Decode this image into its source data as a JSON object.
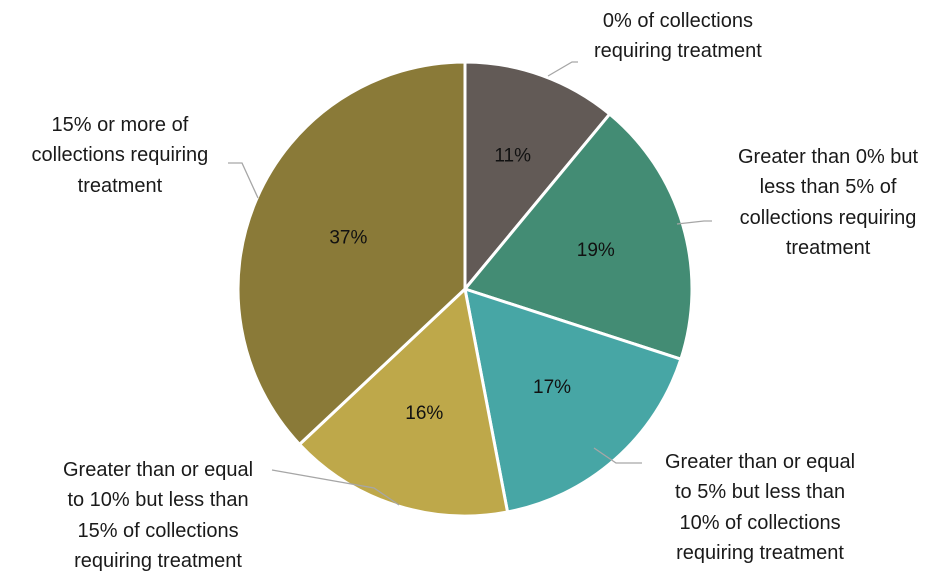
{
  "chart_data": {
    "type": "pie",
    "title": "",
    "slices": [
      {
        "label_lines": [
          "0% of collections",
          "requiring treatment"
        ],
        "value": 11,
        "value_label": "11%",
        "color": "#625a56"
      },
      {
        "label_lines": [
          "Greater than 0% but",
          "less than 5%  of",
          "collections requiring",
          "treatment"
        ],
        "value": 19,
        "value_label": "19%",
        "color": "#438c74"
      },
      {
        "label_lines": [
          "Greater than or equal",
          "to 5% but less than",
          "10% of collections",
          "requiring treatment"
        ],
        "value": 17,
        "value_label": "17%",
        "color": "#47a6a5"
      },
      {
        "label_lines": [
          "Greater than or equal",
          "to 10% but less than",
          "15% of collections",
          "requiring treatment"
        ],
        "value": 16,
        "value_label": "16%",
        "color": "#bea84a"
      },
      {
        "label_lines": [
          "15% or more of",
          "collections requiring",
          "treatment"
        ],
        "value": 37,
        "value_label": "37%",
        "color": "#8a7a38"
      }
    ],
    "start_angle": "12 o'clock",
    "direction": "clockwise",
    "legend": "none"
  }
}
